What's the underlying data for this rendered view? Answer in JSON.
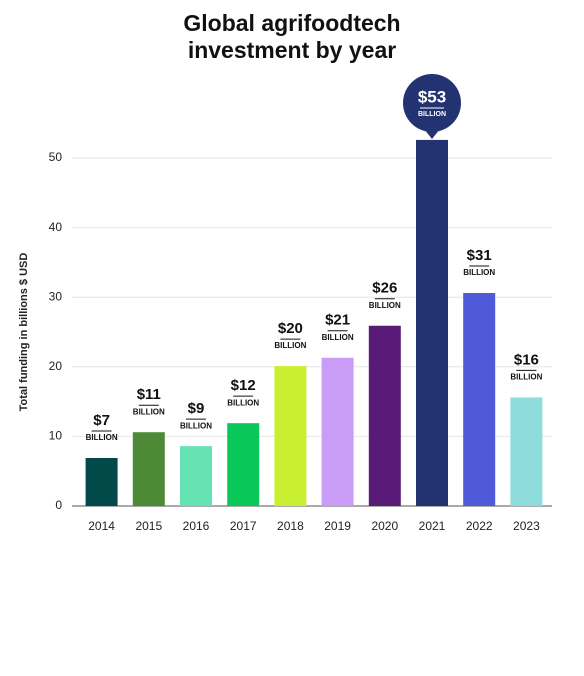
{
  "chart_data": {
    "type": "bar",
    "title": "Global agrifoodtech investment by year",
    "ylabel": "Total funding in billions $ USD",
    "categories": [
      "2014",
      "2015",
      "2016",
      "2017",
      "2018",
      "2019",
      "2020",
      "2021",
      "2022",
      "2023"
    ],
    "values": [
      6.9,
      10.6,
      8.6,
      11.9,
      20.1,
      21.3,
      25.9,
      52.6,
      30.6,
      15.6
    ],
    "value_labels": [
      "$7",
      "$11",
      "$9",
      "$12",
      "$20",
      "$21",
      "$26",
      "$53",
      "$31",
      "$16"
    ],
    "value_unit": "BILLION",
    "colors": [
      "#024a4a",
      "#4c8a35",
      "#66e3b3",
      "#0ac759",
      "#c9f030",
      "#c89cf7",
      "#5a1a78",
      "#233372",
      "#505ad8",
      "#8edddc"
    ],
    "ylim": [
      0,
      50
    ],
    "yticks": [
      0,
      10,
      20,
      30,
      40,
      50
    ],
    "grid": true
  }
}
